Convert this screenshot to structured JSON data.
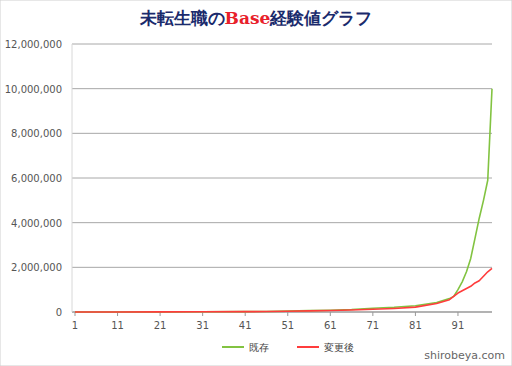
{
  "chart_data": {
    "type": "line",
    "title": "未転生職のBase経験値グラフ",
    "x": [
      1,
      11,
      21,
      31,
      41,
      46,
      51,
      56,
      61,
      66,
      71,
      76,
      81,
      86,
      89,
      90,
      91,
      92,
      93,
      94,
      95,
      96,
      97,
      98,
      99
    ],
    "series": [
      {
        "name": "既存",
        "color": "#82c341",
        "values": [
          0,
          1000,
          4000,
          8000,
          15000,
          25000,
          40000,
          60000,
          80000,
          110000,
          170000,
          210000,
          280000,
          420000,
          600000,
          700000,
          1000000,
          1350000,
          1800000,
          2400000,
          3300000,
          4200000,
          5000000,
          5900000,
          10000000
        ]
      },
      {
        "name": "変更後",
        "color": "#ff3c3c",
        "values": [
          0,
          1000,
          4000,
          8000,
          15000,
          22000,
          35000,
          50000,
          70000,
          90000,
          120000,
          160000,
          220000,
          380000,
          550000,
          700000,
          850000,
          950000,
          1050000,
          1150000,
          1300000,
          1400000,
          1600000,
          1800000,
          1950000
        ]
      }
    ],
    "xlim": [
      1,
      99
    ],
    "xticks": [
      1,
      11,
      21,
      31,
      41,
      51,
      61,
      71,
      81,
      91
    ],
    "ylim": [
      0,
      12000000
    ],
    "yticks": [
      0,
      {
        "value": 2000000,
        "label": "2,000,000"
      },
      {
        "value": 4000000,
        "label": "4,000,000"
      },
      {
        "value": 6000000,
        "label": "6,000,000"
      },
      {
        "value": 8000000,
        "label": "8,000,000"
      },
      {
        "value": 10000000,
        "label": "10,000,000"
      },
      {
        "value": 12000000,
        "label": "12,000,000"
      }
    ],
    "grid": true,
    "legend": "bottom",
    "annotations": [
      "shirobeya.com"
    ]
  }
}
